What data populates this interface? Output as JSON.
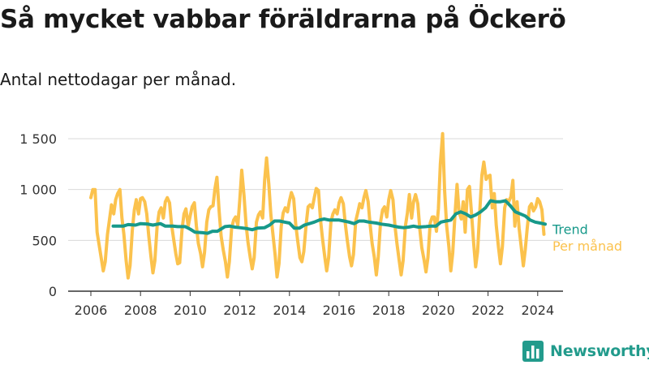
{
  "title": "Så mycket vabbar föräldrarna på Öckerö",
  "subtitle": "Antal nettodagar per månad.",
  "brand": "Newsworthy",
  "colors": {
    "trend": "#17998a",
    "monthly": "#fbc24d",
    "grid": "#d9d9d9",
    "axis": "#333333"
  },
  "chart_data": {
    "type": "line",
    "title": "Så mycket vabbar föräldrarna på Öckerö",
    "subtitle": "Antal nettodagar per månad.",
    "xlim": [
      2005.7,
      2024.7
    ],
    "ylim": [
      0,
      1500
    ],
    "x_ticks": [
      2006,
      2008,
      2010,
      2012,
      2014,
      2016,
      2018,
      2020,
      2022,
      2024
    ],
    "x_tick_labels": [
      "2006",
      "2008",
      "2010",
      "2012",
      "2014",
      "2016",
      "2018",
      "2020",
      "2022",
      "2024"
    ],
    "y_ticks": [
      0,
      500,
      1000,
      1500
    ],
    "y_tick_labels": [
      "0",
      "500",
      "1 000",
      "1 500"
    ],
    "grid": "horizontal",
    "series": [
      {
        "name": "Per månad",
        "color": "#fbc24d",
        "points": [
          [
            2006.0,
            920
          ],
          [
            2006.08,
            1000
          ],
          [
            2006.17,
            1000
          ],
          [
            2006.25,
            580
          ],
          [
            2006.33,
            460
          ],
          [
            2006.42,
            320
          ],
          [
            2006.5,
            200
          ],
          [
            2006.58,
            290
          ],
          [
            2006.67,
            560
          ],
          [
            2006.75,
            700
          ],
          [
            2006.83,
            850
          ],
          [
            2006.92,
            760
          ],
          [
            2007.0,
            900
          ],
          [
            2007.08,
            960
          ],
          [
            2007.17,
            1000
          ],
          [
            2007.25,
            720
          ],
          [
            2007.33,
            560
          ],
          [
            2007.42,
            300
          ],
          [
            2007.5,
            130
          ],
          [
            2007.58,
            250
          ],
          [
            2007.67,
            600
          ],
          [
            2007.75,
            800
          ],
          [
            2007.83,
            900
          ],
          [
            2007.92,
            760
          ],
          [
            2008.0,
            910
          ],
          [
            2008.08,
            920
          ],
          [
            2008.17,
            880
          ],
          [
            2008.25,
            760
          ],
          [
            2008.33,
            550
          ],
          [
            2008.42,
            340
          ],
          [
            2008.5,
            180
          ],
          [
            2008.58,
            300
          ],
          [
            2008.67,
            640
          ],
          [
            2008.75,
            780
          ],
          [
            2008.83,
            820
          ],
          [
            2008.92,
            720
          ],
          [
            2009.0,
            880
          ],
          [
            2009.08,
            920
          ],
          [
            2009.17,
            870
          ],
          [
            2009.25,
            660
          ],
          [
            2009.33,
            520
          ],
          [
            2009.42,
            370
          ],
          [
            2009.5,
            270
          ],
          [
            2009.58,
            280
          ],
          [
            2009.67,
            600
          ],
          [
            2009.75,
            760
          ],
          [
            2009.83,
            810
          ],
          [
            2009.92,
            640
          ],
          [
            2010.0,
            740
          ],
          [
            2010.08,
            830
          ],
          [
            2010.17,
            870
          ],
          [
            2010.25,
            640
          ],
          [
            2010.33,
            470
          ],
          [
            2010.42,
            370
          ],
          [
            2010.5,
            240
          ],
          [
            2010.58,
            380
          ],
          [
            2010.67,
            680
          ],
          [
            2010.75,
            800
          ],
          [
            2010.83,
            830
          ],
          [
            2010.92,
            840
          ],
          [
            2011.0,
            1010
          ],
          [
            2011.08,
            1120
          ],
          [
            2011.17,
            780
          ],
          [
            2011.25,
            540
          ],
          [
            2011.33,
            410
          ],
          [
            2011.42,
            290
          ],
          [
            2011.5,
            140
          ],
          [
            2011.58,
            290
          ],
          [
            2011.67,
            620
          ],
          [
            2011.75,
            700
          ],
          [
            2011.83,
            730
          ],
          [
            2011.92,
            650
          ],
          [
            2012.0,
            900
          ],
          [
            2012.08,
            1190
          ],
          [
            2012.17,
            940
          ],
          [
            2012.25,
            660
          ],
          [
            2012.33,
            480
          ],
          [
            2012.42,
            330
          ],
          [
            2012.5,
            220
          ],
          [
            2012.58,
            330
          ],
          [
            2012.67,
            680
          ],
          [
            2012.75,
            750
          ],
          [
            2012.83,
            780
          ],
          [
            2012.92,
            720
          ],
          [
            2013.0,
            1090
          ],
          [
            2013.08,
            1310
          ],
          [
            2013.17,
            1050
          ],
          [
            2013.25,
            750
          ],
          [
            2013.33,
            570
          ],
          [
            2013.42,
            360
          ],
          [
            2013.5,
            140
          ],
          [
            2013.58,
            270
          ],
          [
            2013.67,
            640
          ],
          [
            2013.75,
            770
          ],
          [
            2013.83,
            820
          ],
          [
            2013.92,
            780
          ],
          [
            2014.0,
            890
          ],
          [
            2014.08,
            970
          ],
          [
            2014.17,
            910
          ],
          [
            2014.25,
            660
          ],
          [
            2014.33,
            500
          ],
          [
            2014.42,
            330
          ],
          [
            2014.5,
            290
          ],
          [
            2014.58,
            390
          ],
          [
            2014.67,
            650
          ],
          [
            2014.75,
            830
          ],
          [
            2014.83,
            850
          ],
          [
            2014.92,
            820
          ],
          [
            2015.0,
            920
          ],
          [
            2015.08,
            1010
          ],
          [
            2015.17,
            990
          ],
          [
            2015.25,
            700
          ],
          [
            2015.33,
            520
          ],
          [
            2015.42,
            340
          ],
          [
            2015.5,
            200
          ],
          [
            2015.58,
            330
          ],
          [
            2015.67,
            680
          ],
          [
            2015.75,
            760
          ],
          [
            2015.83,
            800
          ],
          [
            2015.92,
            760
          ],
          [
            2016.0,
            870
          ],
          [
            2016.08,
            920
          ],
          [
            2016.17,
            860
          ],
          [
            2016.25,
            660
          ],
          [
            2016.33,
            500
          ],
          [
            2016.42,
            340
          ],
          [
            2016.5,
            250
          ],
          [
            2016.58,
            360
          ],
          [
            2016.67,
            690
          ],
          [
            2016.75,
            770
          ],
          [
            2016.83,
            860
          ],
          [
            2016.92,
            820
          ],
          [
            2017.0,
            920
          ],
          [
            2017.08,
            990
          ],
          [
            2017.17,
            880
          ],
          [
            2017.25,
            650
          ],
          [
            2017.33,
            470
          ],
          [
            2017.42,
            330
          ],
          [
            2017.5,
            160
          ],
          [
            2017.58,
            340
          ],
          [
            2017.67,
            680
          ],
          [
            2017.75,
            800
          ],
          [
            2017.83,
            830
          ],
          [
            2017.92,
            730
          ],
          [
            2018.0,
            900
          ],
          [
            2018.08,
            990
          ],
          [
            2018.17,
            900
          ],
          [
            2018.25,
            640
          ],
          [
            2018.33,
            470
          ],
          [
            2018.42,
            300
          ],
          [
            2018.5,
            160
          ],
          [
            2018.58,
            300
          ],
          [
            2018.67,
            640
          ],
          [
            2018.75,
            770
          ],
          [
            2018.83,
            950
          ],
          [
            2018.92,
            720
          ],
          [
            2019.0,
            880
          ],
          [
            2019.08,
            950
          ],
          [
            2019.17,
            860
          ],
          [
            2019.25,
            610
          ],
          [
            2019.33,
            430
          ],
          [
            2019.42,
            310
          ],
          [
            2019.5,
            190
          ],
          [
            2019.58,
            330
          ],
          [
            2019.67,
            670
          ],
          [
            2019.75,
            730
          ],
          [
            2019.83,
            730
          ],
          [
            2019.92,
            590
          ],
          [
            2020.0,
            810
          ],
          [
            2020.08,
            1250
          ],
          [
            2020.17,
            1550
          ],
          [
            2020.25,
            1000
          ],
          [
            2020.33,
            650
          ],
          [
            2020.42,
            440
          ],
          [
            2020.5,
            200
          ],
          [
            2020.58,
            380
          ],
          [
            2020.67,
            760
          ],
          [
            2020.75,
            1050
          ],
          [
            2020.83,
            780
          ],
          [
            2020.92,
            710
          ],
          [
            2021.0,
            880
          ],
          [
            2021.08,
            580
          ],
          [
            2021.17,
            1000
          ],
          [
            2021.25,
            1030
          ],
          [
            2021.33,
            780
          ],
          [
            2021.42,
            470
          ],
          [
            2021.5,
            240
          ],
          [
            2021.58,
            390
          ],
          [
            2021.67,
            800
          ],
          [
            2021.75,
            1140
          ],
          [
            2021.83,
            1270
          ],
          [
            2021.92,
            1100
          ],
          [
            2022.0,
            1130
          ],
          [
            2022.08,
            1140
          ],
          [
            2022.17,
            820
          ],
          [
            2022.25,
            960
          ],
          [
            2022.33,
            650
          ],
          [
            2022.42,
            430
          ],
          [
            2022.5,
            270
          ],
          [
            2022.58,
            440
          ],
          [
            2022.67,
            820
          ],
          [
            2022.75,
            900
          ],
          [
            2022.83,
            880
          ],
          [
            2022.92,
            930
          ],
          [
            2023.0,
            1090
          ],
          [
            2023.08,
            640
          ],
          [
            2023.17,
            880
          ],
          [
            2023.25,
            620
          ],
          [
            2023.33,
            450
          ],
          [
            2023.42,
            250
          ],
          [
            2023.5,
            410
          ],
          [
            2023.58,
            620
          ],
          [
            2023.67,
            830
          ],
          [
            2023.75,
            860
          ],
          [
            2023.83,
            790
          ],
          [
            2023.92,
            830
          ],
          [
            2024.0,
            910
          ],
          [
            2024.08,
            880
          ],
          [
            2024.17,
            800
          ],
          [
            2024.25,
            560
          ]
        ]
      },
      {
        "name": "Trend",
        "color": "#17998a",
        "points": [
          [
            2006.9,
            640
          ],
          [
            2007.3,
            640
          ],
          [
            2007.5,
            655
          ],
          [
            2007.8,
            650
          ],
          [
            2008.0,
            665
          ],
          [
            2008.3,
            660
          ],
          [
            2008.5,
            650
          ],
          [
            2008.8,
            665
          ],
          [
            2009.0,
            640
          ],
          [
            2009.3,
            640
          ],
          [
            2009.5,
            635
          ],
          [
            2009.8,
            635
          ],
          [
            2010.0,
            610
          ],
          [
            2010.2,
            580
          ],
          [
            2010.5,
            575
          ],
          [
            2010.7,
            570
          ],
          [
            2010.9,
            590
          ],
          [
            2011.1,
            590
          ],
          [
            2011.4,
            635
          ],
          [
            2011.6,
            640
          ],
          [
            2011.8,
            630
          ],
          [
            2012.0,
            625
          ],
          [
            2012.3,
            615
          ],
          [
            2012.5,
            605
          ],
          [
            2012.7,
            620
          ],
          [
            2013.0,
            625
          ],
          [
            2013.2,
            650
          ],
          [
            2013.4,
            690
          ],
          [
            2013.6,
            690
          ],
          [
            2013.8,
            680
          ],
          [
            2014.0,
            670
          ],
          [
            2014.2,
            620
          ],
          [
            2014.4,
            620
          ],
          [
            2014.6,
            650
          ],
          [
            2014.8,
            665
          ],
          [
            2015.0,
            680
          ],
          [
            2015.2,
            700
          ],
          [
            2015.4,
            710
          ],
          [
            2015.6,
            700
          ],
          [
            2015.8,
            700
          ],
          [
            2016.0,
            700
          ],
          [
            2016.2,
            690
          ],
          [
            2016.4,
            680
          ],
          [
            2016.6,
            665
          ],
          [
            2016.8,
            690
          ],
          [
            2017.0,
            690
          ],
          [
            2017.2,
            680
          ],
          [
            2017.5,
            670
          ],
          [
            2017.7,
            660
          ],
          [
            2018.0,
            650
          ],
          [
            2018.2,
            640
          ],
          [
            2018.4,
            630
          ],
          [
            2018.6,
            625
          ],
          [
            2018.8,
            630
          ],
          [
            2019.0,
            640
          ],
          [
            2019.2,
            630
          ],
          [
            2019.5,
            635
          ],
          [
            2019.7,
            640
          ],
          [
            2019.9,
            640
          ],
          [
            2020.1,
            680
          ],
          [
            2020.3,
            690
          ],
          [
            2020.5,
            700
          ],
          [
            2020.7,
            760
          ],
          [
            2020.9,
            780
          ],
          [
            2021.1,
            760
          ],
          [
            2021.3,
            730
          ],
          [
            2021.5,
            750
          ],
          [
            2021.7,
            780
          ],
          [
            2021.9,
            820
          ],
          [
            2022.1,
            890
          ],
          [
            2022.3,
            880
          ],
          [
            2022.5,
            880
          ],
          [
            2022.7,
            890
          ],
          [
            2022.9,
            840
          ],
          [
            2023.1,
            780
          ],
          [
            2023.3,
            760
          ],
          [
            2023.5,
            740
          ],
          [
            2023.7,
            700
          ],
          [
            2023.9,
            680
          ],
          [
            2024.1,
            670
          ],
          [
            2024.3,
            660
          ]
        ]
      }
    ]
  }
}
